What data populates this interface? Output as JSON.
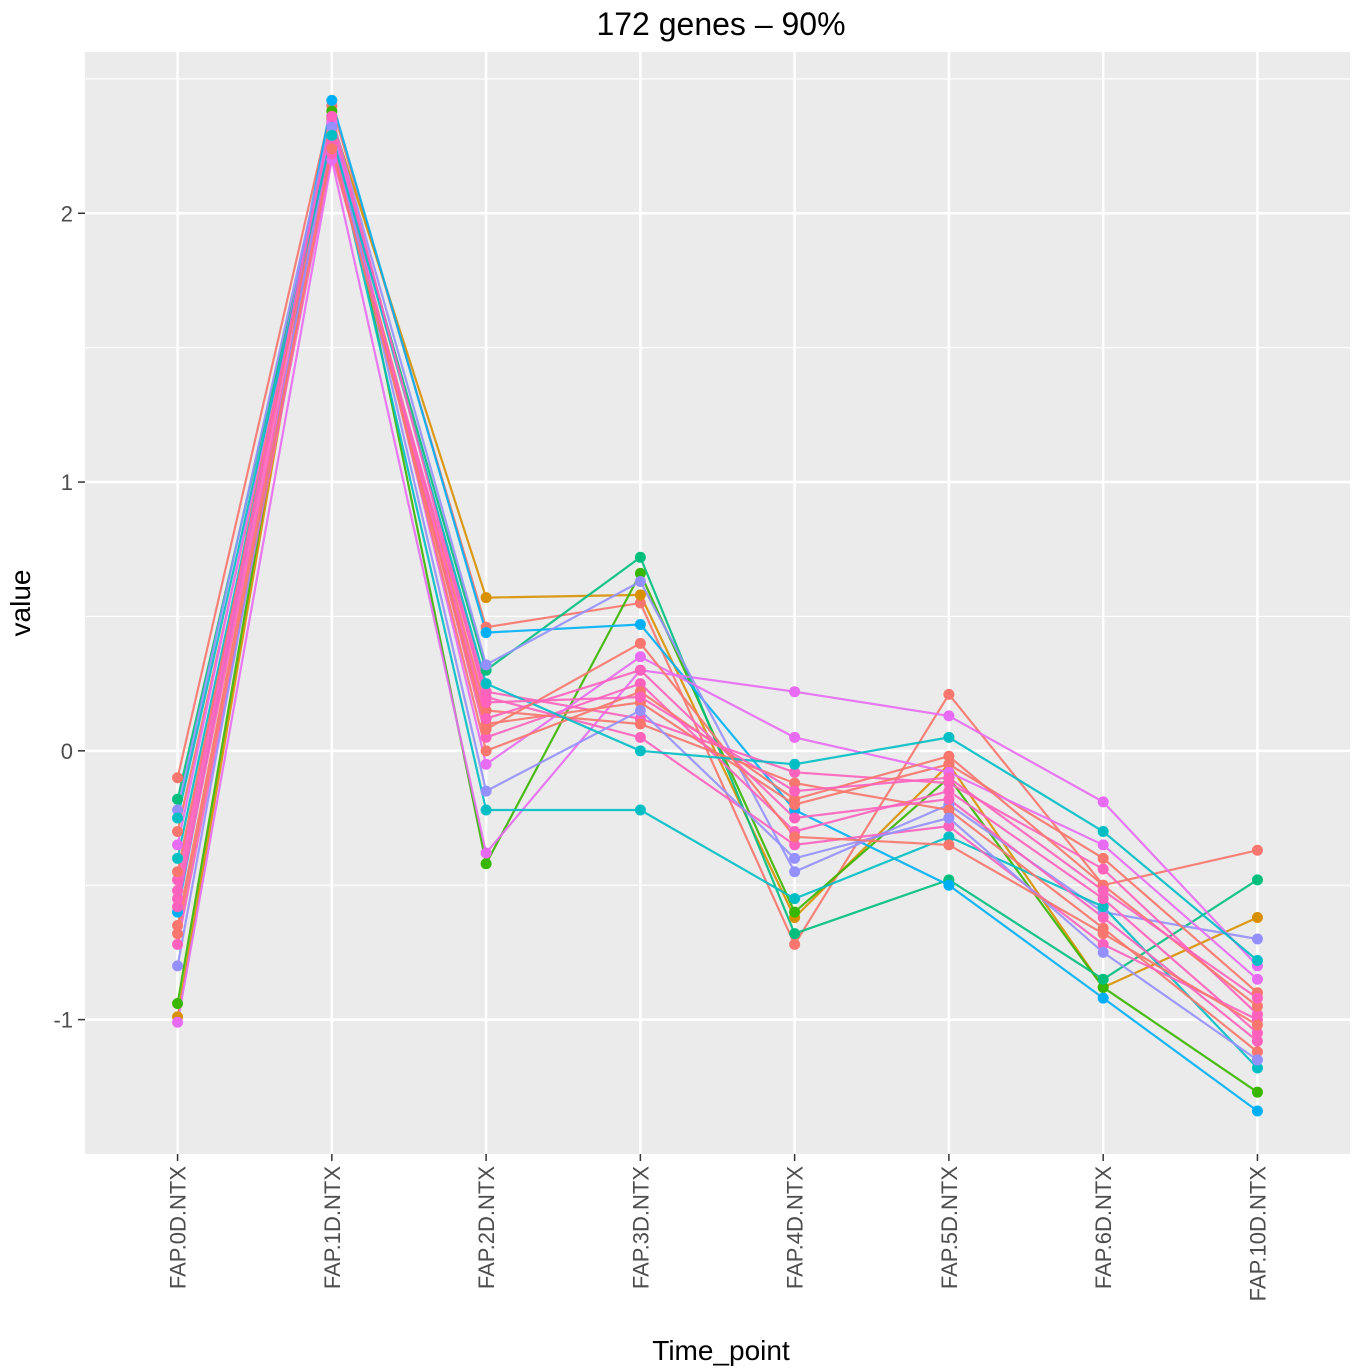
{
  "chart_data": {
    "type": "line",
    "title": "172  genes –  90%",
    "xlabel": "Time_point",
    "ylabel": "value",
    "categories": [
      "FAP.0D.NTX",
      "FAP.1D.NTX",
      "FAP.2D.NTX",
      "FAP.3D.NTX",
      "FAP.4D.NTX",
      "FAP.5D.NTX",
      "FAP.6D.NTX",
      "FAP.10D.NTX"
    ],
    "y_ticks": [
      -1,
      0,
      1,
      2
    ],
    "y_tick_labels": [
      "-1",
      "0",
      "1",
      "2"
    ],
    "ylim": [
      -1.5,
      2.6
    ],
    "grid": true,
    "legend": "none",
    "n_series": 172,
    "series": [
      {
        "values": [
          -0.1,
          2.4,
          0.46,
          0.55,
          -0.72,
          0.21,
          -0.5,
          -0.37
        ],
        "color": "#F8766D"
      },
      {
        "values": [
          -0.99,
          2.35,
          0.57,
          0.58,
          -0.62,
          -0.05,
          -0.88,
          -0.62
        ],
        "color": "#D89000"
      },
      {
        "values": [
          -0.94,
          2.38,
          -0.42,
          0.66,
          -0.6,
          -0.1,
          -0.88,
          -1.27
        ],
        "color": "#39B600"
      },
      {
        "values": [
          -0.18,
          2.3,
          0.3,
          0.72,
          -0.68,
          -0.48,
          -0.85,
          -0.48
        ],
        "color": "#00BF7D"
      },
      {
        "values": [
          -0.6,
          2.42,
          0.44,
          0.47,
          -0.22,
          -0.5,
          -0.92,
          -1.34
        ],
        "color": "#00B0F6"
      },
      {
        "values": [
          -1.01,
          2.2,
          -0.38,
          0.3,
          0.22,
          0.13,
          -0.19,
          -0.8
        ],
        "color": "#E76BF3"
      },
      {
        "values": [
          -0.22,
          2.36,
          0.32,
          0.63,
          -0.45,
          -0.2,
          -0.6,
          -0.7
        ],
        "color": "#9590FF"
      },
      {
        "values": [
          -0.4,
          2.28,
          -0.22,
          -0.22,
          -0.55,
          -0.32,
          -0.58,
          -1.18
        ],
        "color": "#00BFC4"
      },
      {
        "values": [
          -0.48,
          2.33,
          0.22,
          0.12,
          -0.08,
          -0.12,
          -0.44,
          -0.98
        ],
        "color": "#FF62BC"
      },
      {
        "values": [
          -0.3,
          2.25,
          0.1,
          0.18,
          -0.2,
          -0.05,
          -0.4,
          -0.9
        ],
        "color": "#F8766D"
      },
      {
        "values": [
          -0.55,
          2.31,
          0.05,
          0.25,
          -0.3,
          -0.15,
          -0.55,
          -1.05
        ],
        "color": "#FF62BC"
      },
      {
        "values": [
          -0.65,
          2.27,
          0.15,
          0.1,
          -0.12,
          -0.22,
          -0.66,
          -1.12
        ],
        "color": "#F8766D"
      },
      {
        "values": [
          -0.35,
          2.34,
          -0.05,
          0.35,
          0.05,
          -0.08,
          -0.35,
          -0.85
        ],
        "color": "#E76BF3"
      },
      {
        "values": [
          -0.72,
          2.22,
          0.2,
          0.05,
          -0.35,
          -0.28,
          -0.72,
          -1.0
        ],
        "color": "#FF62BC"
      },
      {
        "values": [
          -0.45,
          2.3,
          0.0,
          0.22,
          -0.18,
          -0.02,
          -0.5,
          -0.95
        ],
        "color": "#F8766D"
      },
      {
        "values": [
          -0.58,
          2.26,
          0.12,
          0.3,
          -0.25,
          -0.18,
          -0.62,
          -1.08
        ],
        "color": "#FF62BC"
      },
      {
        "values": [
          -0.8,
          2.32,
          -0.15,
          0.15,
          -0.4,
          -0.25,
          -0.75,
          -1.15
        ],
        "color": "#9590FF"
      },
      {
        "values": [
          -0.25,
          2.29,
          0.25,
          0.0,
          -0.05,
          0.05,
          -0.3,
          -0.78
        ],
        "color": "#00BFC4"
      },
      {
        "values": [
          -0.68,
          2.24,
          0.08,
          0.4,
          -0.32,
          -0.35,
          -0.68,
          -1.02
        ],
        "color": "#F8766D"
      },
      {
        "values": [
          -0.52,
          2.36,
          0.18,
          0.2,
          -0.15,
          -0.1,
          -0.52,
          -0.92
        ],
        "color": "#FF62BC"
      }
    ]
  }
}
